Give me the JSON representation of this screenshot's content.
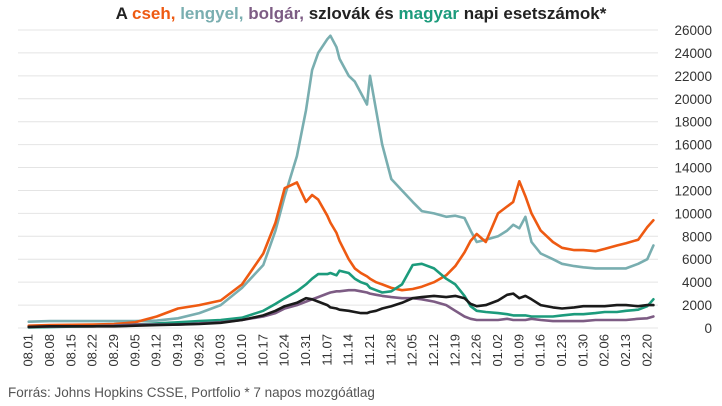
{
  "title": {
    "prefix": "A ",
    "cz": "cseh,",
    "sp1": " ",
    "pl": "lengyel,",
    "sp2": " ",
    "bg": "bolgár,",
    "mid": " szlovák és ",
    "hu": "magyar",
    "suffix": " napi esetszámok*"
  },
  "source": "Forrás: Johns Hopkins CSSE, Portfolio   * 7 napos mozgóátlag",
  "chart_data": {
    "type": "line",
    "x_labels": [
      "08.01",
      "08.08",
      "08.15",
      "08.22",
      "08.29",
      "09.05",
      "09.12",
      "09.19",
      "09.26",
      "10.03",
      "10.10",
      "10.17",
      "10.24",
      "10.31",
      "11.07",
      "11.14",
      "11.21",
      "11.28",
      "12.05",
      "12.12",
      "12.19",
      "12.26",
      "01.02",
      "01.09",
      "01.16",
      "01.23",
      "01.30",
      "02.06",
      "02.13",
      "02.20"
    ],
    "x": [
      "08.01",
      "08.08",
      "08.15",
      "08.22",
      "08.29",
      "09.05",
      "09.12",
      "09.19",
      "09.26",
      "10.03",
      "10.10",
      "10.17",
      "10.21",
      "10.24",
      "10.28",
      "10.31",
      "11.02",
      "11.04",
      "11.07",
      "11.08",
      "11.10",
      "11.11",
      "11.14",
      "11.16",
      "11.18",
      "11.20",
      "11.21",
      "11.23",
      "11.25",
      "11.28",
      "12.01",
      "12.05",
      "12.08",
      "12.12",
      "12.16",
      "12.19",
      "12.22",
      "12.24",
      "12.26",
      "12.29",
      "01.02",
      "01.05",
      "01.07",
      "01.09",
      "01.11",
      "01.13",
      "01.16",
      "01.20",
      "01.23",
      "01.27",
      "01.30",
      "02.03",
      "02.06",
      "02.10",
      "02.13",
      "02.17",
      "02.20",
      "02.22"
    ],
    "y_ticks": [
      0,
      2000,
      4000,
      6000,
      8000,
      10000,
      12000,
      14000,
      16000,
      18000,
      20000,
      22000,
      24000,
      26000
    ],
    "ylim": [
      0,
      26000
    ],
    "grid": true,
    "legend": "none (series named in the title)",
    "series": [
      {
        "name": "lengyel",
        "color": "#79aeb0",
        "values": [
          550,
          600,
          600,
          600,
          600,
          600,
          650,
          850,
          1300,
          2000,
          3500,
          5500,
          8500,
          11500,
          15000,
          19000,
          22500,
          24000,
          25200,
          25500,
          24500,
          23500,
          22000,
          21500,
          20500,
          19500,
          22000,
          19000,
          16000,
          13000,
          12000,
          11000,
          10200,
          10000,
          9700,
          9800,
          9600,
          8500,
          7500,
          7700,
          8000,
          8500,
          9000,
          8700,
          9700,
          7500,
          6500,
          6000,
          5600,
          5400,
          5300,
          5200,
          5200,
          5200,
          5200,
          5600,
          6000,
          7200
        ]
      },
      {
        "name": "cseh",
        "color": "#ee5a12",
        "values": [
          200,
          250,
          280,
          300,
          350,
          500,
          1000,
          1700,
          2000,
          2400,
          3800,
          6500,
          9200,
          12200,
          12700,
          11000,
          11600,
          11200,
          9800,
          9200,
          8300,
          7600,
          6000,
          5200,
          4800,
          4500,
          4300,
          4000,
          3800,
          3500,
          3300,
          3400,
          3600,
          4000,
          4600,
          5400,
          6600,
          7600,
          8200,
          7500,
          10000,
          10600,
          11000,
          12800,
          11500,
          10000,
          8500,
          7500,
          7000,
          6800,
          6800,
          6700,
          6900,
          7200,
          7400,
          7700,
          8800,
          9400
        ]
      },
      {
        "name": "magyar",
        "color": "#1c9b7c",
        "values": [
          50,
          80,
          120,
          150,
          200,
          300,
          400,
          500,
          600,
          700,
          900,
          1500,
          2100,
          2600,
          3200,
          3800,
          4300,
          4700,
          4700,
          4800,
          4600,
          5000,
          4800,
          4300,
          4000,
          3800,
          3500,
          3300,
          3100,
          3200,
          3800,
          5500,
          5600,
          5200,
          4300,
          3800,
          2800,
          1900,
          1500,
          1400,
          1300,
          1200,
          1100,
          1100,
          1100,
          1000,
          1000,
          1000,
          1100,
          1200,
          1200,
          1300,
          1400,
          1400,
          1500,
          1600,
          1900,
          2500
        ]
      },
      {
        "name": "bolgár",
        "color": "#7d5c84",
        "values": [
          100,
          120,
          150,
          150,
          200,
          300,
          300,
          300,
          400,
          500,
          700,
          1000,
          1300,
          1700,
          2000,
          2300,
          2500,
          2700,
          3000,
          3100,
          3200,
          3200,
          3300,
          3300,
          3200,
          3100,
          3000,
          2900,
          2800,
          2700,
          2600,
          2600,
          2500,
          2300,
          2000,
          1500,
          1000,
          800,
          700,
          700,
          700,
          800,
          700,
          700,
          700,
          800,
          700,
          600,
          600,
          600,
          600,
          700,
          700,
          700,
          700,
          800,
          850,
          1000
        ]
      },
      {
        "name": "szlovák",
        "color": "#1a1a1a",
        "values": [
          100,
          150,
          150,
          150,
          150,
          200,
          250,
          300,
          350,
          450,
          700,
          1100,
          1500,
          1900,
          2200,
          2600,
          2500,
          2300,
          2000,
          1800,
          1700,
          1600,
          1500,
          1400,
          1300,
          1300,
          1400,
          1500,
          1700,
          1900,
          2200,
          2600,
          2700,
          2800,
          2700,
          2800,
          2600,
          2100,
          1900,
          2000,
          2400,
          2900,
          3000,
          2600,
          2800,
          2500,
          2000,
          1800,
          1700,
          1800,
          1900,
          1900,
          1900,
          2000,
          2000,
          1900,
          2000,
          2000
        ]
      }
    ]
  }
}
